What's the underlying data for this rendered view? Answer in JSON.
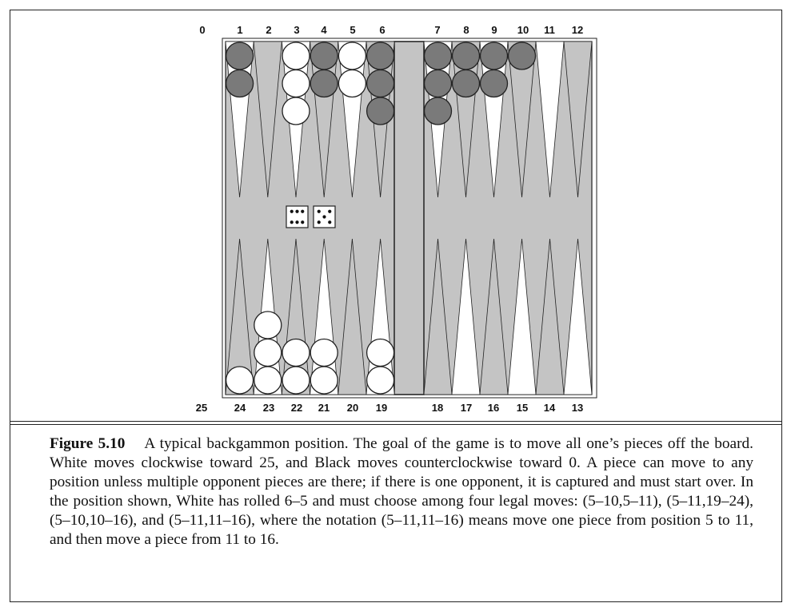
{
  "board": {
    "top_numbers": [
      "0",
      "1",
      "2",
      "3",
      "4",
      "5",
      "6",
      "7",
      "8",
      "9",
      "10",
      "11",
      "12"
    ],
    "bottom_numbers": [
      "25",
      "24",
      "23",
      "22",
      "21",
      "20",
      "19",
      "18",
      "17",
      "16",
      "15",
      "14",
      "13"
    ],
    "colors": {
      "board_bg": "#c4c4c4",
      "point_light": "#ffffff",
      "point_dark": "#c4c4c4",
      "white_piece": "#ffffff",
      "black_piece": "#7a7a7a",
      "outline": "#222222"
    },
    "top_stacks": [
      {
        "point": 1,
        "color": "black",
        "count": 2
      },
      {
        "point": 2,
        "color": "none",
        "count": 0
      },
      {
        "point": 3,
        "color": "white",
        "count": 3
      },
      {
        "point": 4,
        "color": "black",
        "count": 2
      },
      {
        "point": 5,
        "color": "white",
        "count": 2
      },
      {
        "point": 6,
        "color": "black",
        "count": 3
      },
      {
        "point": 7,
        "color": "black",
        "count": 3
      },
      {
        "point": 8,
        "color": "black",
        "count": 2
      },
      {
        "point": 9,
        "color": "black",
        "count": 2
      },
      {
        "point": 10,
        "color": "black",
        "count": 1
      },
      {
        "point": 11,
        "color": "none",
        "count": 0
      },
      {
        "point": 12,
        "color": "none",
        "count": 0
      }
    ],
    "bottom_stacks": [
      {
        "point": 24,
        "color": "white",
        "count": 1
      },
      {
        "point": 23,
        "color": "white",
        "count": 3
      },
      {
        "point": 22,
        "color": "white",
        "count": 2
      },
      {
        "point": 21,
        "color": "white",
        "count": 2
      },
      {
        "point": 20,
        "color": "none",
        "count": 0
      },
      {
        "point": 19,
        "color": "white",
        "count": 2
      },
      {
        "point": 18,
        "color": "none",
        "count": 0
      },
      {
        "point": 17,
        "color": "none",
        "count": 0
      },
      {
        "point": 16,
        "color": "none",
        "count": 0
      },
      {
        "point": 15,
        "color": "none",
        "count": 0
      },
      {
        "point": 14,
        "color": "none",
        "count": 0
      },
      {
        "point": 13,
        "color": "none",
        "count": 0
      }
    ],
    "dice": [
      6,
      5
    ]
  },
  "caption": {
    "label": "Figure 5.10",
    "text": "A typical backgammon position. The goal of the game is to move all one’s pieces off the board. White moves clockwise toward 25, and Black moves counterclockwise toward 0. A piece can move to any position unless multiple opponent pieces are there; if there is one opponent, it is captured and must start over. In the position shown, White has rolled 6–5 and must choose among four legal moves: (5–10,5–11), (5–11,19–24), (5–10,10–16), and (5–11,11–16), where the notation (5–11,11–16) means move one piece from position 5 to 11, and then move a piece from 11 to 16."
  }
}
